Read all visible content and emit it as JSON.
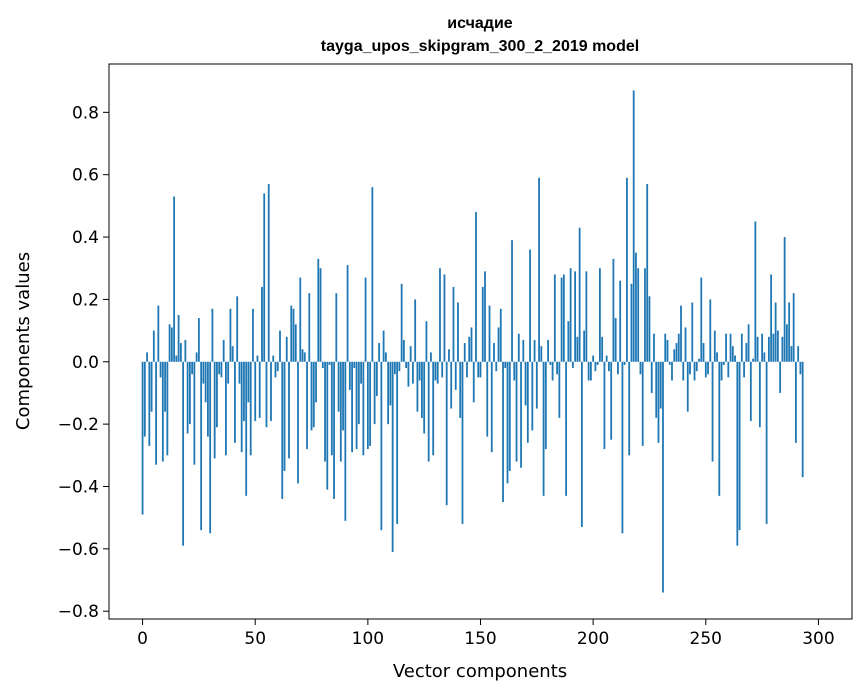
{
  "chart_data": {
    "type": "bar",
    "title": "исчадие",
    "subtitle": "tayga_upos_skipgram_300_2_2019 model",
    "xlabel": "Vector components",
    "ylabel": "Components values",
    "xlim": [
      -14.9,
      314.9
    ],
    "ylim": [
      -0.825,
      0.955
    ],
    "xticks": [
      0,
      50,
      100,
      150,
      200,
      250,
      300
    ],
    "yticks": [
      -0.8,
      -0.6,
      -0.4,
      -0.2,
      0.0,
      0.2,
      0.4,
      0.6,
      0.8
    ],
    "ytick_labels": [
      "−0.8",
      "−0.6",
      "−0.4",
      "−0.2",
      "0.0",
      "0.2",
      "0.4",
      "0.6",
      "0.8"
    ],
    "grid": false,
    "bar_color": "#1f77b4",
    "values": [
      -0.49,
      -0.24,
      0.03,
      -0.27,
      -0.16,
      0.1,
      -0.33,
      0.18,
      -0.05,
      -0.32,
      -0.16,
      -0.3,
      0.12,
      0.11,
      0.53,
      0.02,
      0.15,
      0.06,
      -0.59,
      0.07,
      -0.23,
      -0.2,
      -0.04,
      -0.33,
      0.03,
      0.14,
      -0.54,
      -0.07,
      -0.13,
      -0.24,
      -0.55,
      0.17,
      -0.31,
      -0.21,
      -0.04,
      -0.05,
      0.07,
      -0.3,
      -0.07,
      0.17,
      0.05,
      -0.26,
      0.21,
      -0.07,
      -0.29,
      -0.19,
      -0.43,
      -0.13,
      -0.3,
      0.17,
      -0.19,
      0.02,
      -0.18,
      0.24,
      0.54,
      -0.21,
      0.57,
      -0.19,
      0.02,
      -0.05,
      -0.03,
      0.1,
      -0.44,
      -0.35,
      0.08,
      -0.31,
      0.18,
      0.17,
      0.12,
      -0.39,
      0.27,
      0.04,
      0.03,
      -0.28,
      0.22,
      -0.22,
      -0.21,
      -0.13,
      0.33,
      0.3,
      -0.02,
      -0.32,
      -0.41,
      -0.01,
      -0.3,
      -0.44,
      0.22,
      -0.16,
      -0.32,
      -0.22,
      -0.51,
      0.31,
      -0.09,
      -0.29,
      -0.02,
      -0.28,
      -0.2,
      -0.07,
      -0.3,
      0.27,
      -0.28,
      -0.27,
      0.56,
      -0.2,
      -0.11,
      0.06,
      -0.54,
      0.1,
      0.03,
      -0.2,
      -0.14,
      -0.61,
      -0.04,
      -0.52,
      -0.03,
      0.25,
      0.07,
      -0.02,
      -0.08,
      0.05,
      -0.07,
      0.2,
      -0.16,
      -0.06,
      -0.18,
      -0.23,
      0.13,
      -0.32,
      0.03,
      -0.3,
      -0.06,
      -0.07,
      0.3,
      -0.05,
      0.28,
      -0.46,
      0.04,
      -0.15,
      0.24,
      -0.09,
      0.19,
      -0.18,
      -0.52,
      0.06,
      -0.05,
      0.08,
      0.11,
      -0.13,
      0.48,
      -0.05,
      -0.05,
      0.24,
      0.29,
      -0.24,
      0.18,
      -0.29,
      0.06,
      -0.03,
      0.11,
      0.17,
      -0.45,
      -0.02,
      -0.39,
      -0.35,
      0.39,
      -0.06,
      -0.32,
      0.09,
      -0.34,
      0.07,
      -0.14,
      -0.26,
      0.36,
      -0.22,
      0.07,
      -0.15,
      0.59,
      0.05,
      -0.43,
      -0.28,
      0.07,
      -0.01,
      -0.06,
      0.28,
      -0.04,
      -0.18,
      0.27,
      0.28,
      -0.43,
      0.13,
      0.3,
      -0.02,
      0.29,
      0.08,
      0.43,
      -0.53,
      0.1,
      0.29,
      -0.06,
      -0.06,
      0.02,
      -0.03,
      -0.01,
      0.3,
      0.08,
      -0.28,
      0.02,
      -0.03,
      -0.25,
      0.33,
      0.14,
      -0.04,
      0.26,
      -0.55,
      -0.01,
      0.59,
      -0.3,
      0.25,
      0.87,
      0.35,
      0.3,
      -0.04,
      -0.27,
      0.3,
      0.57,
      0.21,
      -0.1,
      0.09,
      -0.18,
      -0.26,
      -0.15,
      -0.74,
      0.09,
      0.07,
      -0.01,
      -0.06,
      0.04,
      0.06,
      0.09,
      0.18,
      -0.06,
      0.11,
      -0.16,
      -0.04,
      0.19,
      -0.06,
      -0.03,
      0.01,
      0.27,
      0.06,
      -0.05,
      -0.04,
      0.2,
      -0.32,
      0.1,
      0.03,
      -0.43,
      -0.06,
      -0.01,
      0.09,
      -0.05,
      0.09,
      0.05,
      0.02,
      -0.59,
      -0.54,
      0.09,
      -0.05,
      0.06,
      0.12,
      -0.19,
      0.01,
      0.45,
      0.08,
      -0.21,
      0.09,
      0.03,
      -0.52,
      0.08,
      0.28,
      0.09,
      0.19,
      0.1,
      -0.1,
      0.08,
      0.4,
      0.12,
      0.19,
      0.05,
      0.22,
      -0.26,
      0.05,
      -0.04,
      -0.37
    ]
  }
}
